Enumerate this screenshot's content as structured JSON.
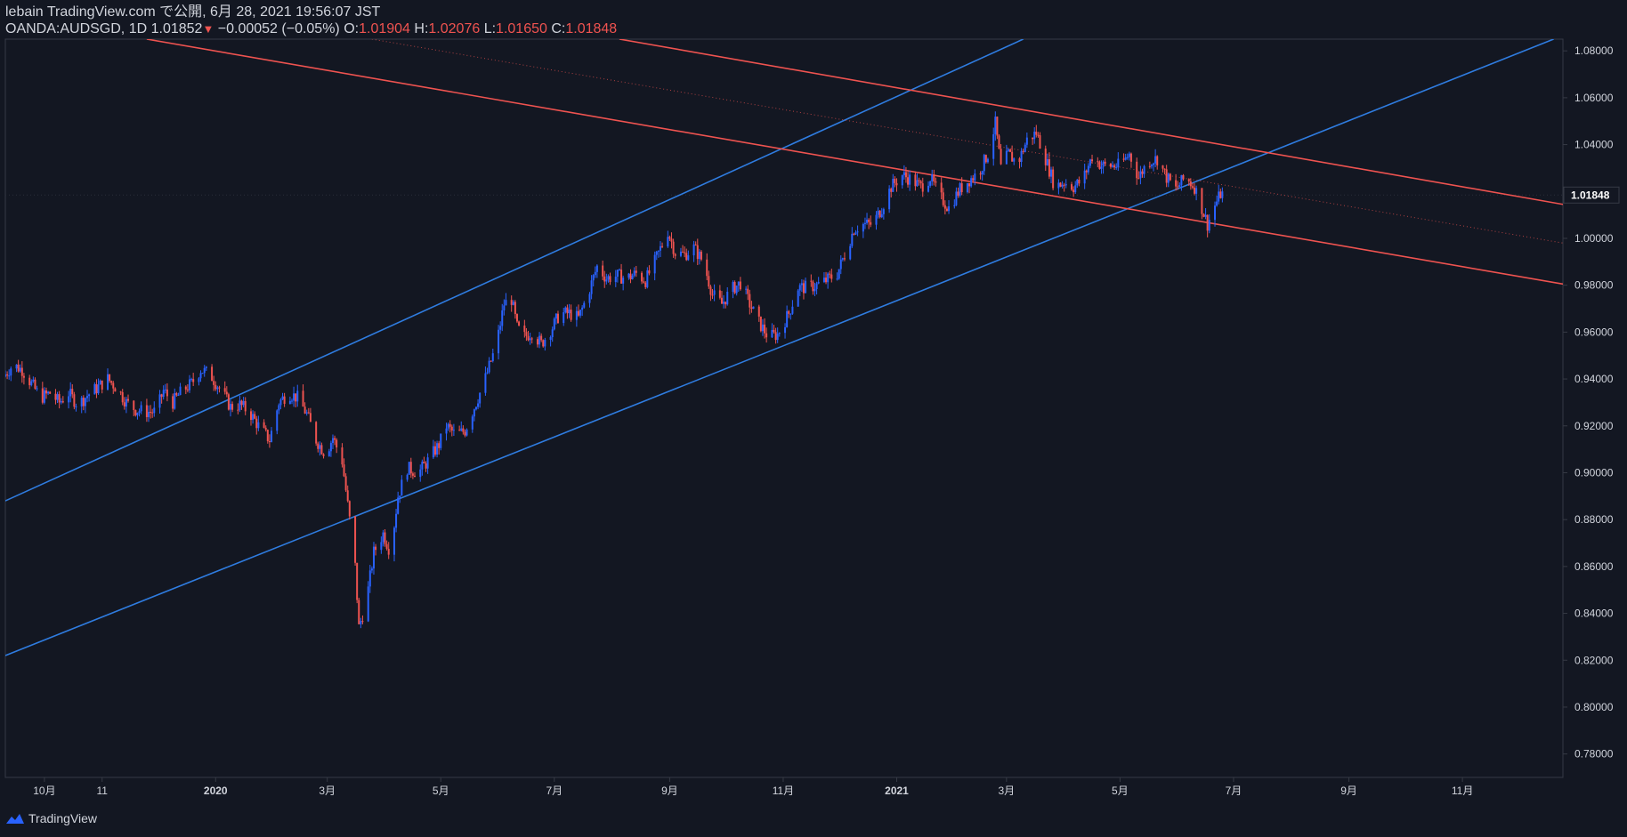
{
  "header": {
    "line1": "lebain TradingView.com で公開, 6月 28, 2021 19:56:07 JST",
    "symbol": "OANDA:AUDSGD, 1D",
    "last": "1.01852",
    "arrow": "▼",
    "change": "−0.00052 (−0.05%)",
    "o_label": "O:",
    "o_value": "1.01904",
    "h_label": "H:",
    "h_value": "1.02076",
    "l_label": "L:",
    "l_value": "1.01650",
    "c_label": "C:",
    "c_value": "1.01848"
  },
  "footer": {
    "brand": "TradingView",
    "logo": "tradingview-logo-icon"
  },
  "colors": {
    "background": "#131722",
    "up": "#2962ff",
    "down": "#ef5350",
    "channel_up": "#2f7ce0",
    "channel_down": "#ef5350",
    "text": "#d1d4dc",
    "grid_border": "#363a45"
  },
  "chart_data": {
    "type": "candlestick",
    "symbol": "OANDA:AUDSGD",
    "interval": "1D",
    "ylim": [
      0.77,
      1.085
    ],
    "y_ticks": [
      "1.08000",
      "1.06000",
      "1.04000",
      "1.02000",
      "1.00000",
      "0.98000",
      "0.96000",
      "0.94000",
      "0.92000",
      "0.90000",
      "0.88000",
      "0.86000",
      "0.84000",
      "0.82000",
      "0.80000",
      "0.78000"
    ],
    "y_tick_values": [
      1.08,
      1.06,
      1.04,
      1.02,
      1.0,
      0.98,
      0.96,
      0.94,
      0.92,
      0.9,
      0.88,
      0.86,
      0.84,
      0.82,
      0.8,
      0.78
    ],
    "price_label": "1.01848",
    "price_value": 1.01848,
    "x_range": [
      "2019-09-10",
      "2021-12-25"
    ],
    "x_ticks": [
      {
        "label": "10月",
        "date": "2019-10-01"
      },
      {
        "label": "11",
        "date": "2019-11-01"
      },
      {
        "label": "2020",
        "date": "2020-01-01"
      },
      {
        "label": "3月",
        "date": "2020-03-01"
      },
      {
        "label": "5月",
        "date": "2020-05-01"
      },
      {
        "label": "7月",
        "date": "2020-07-01"
      },
      {
        "label": "9月",
        "date": "2020-09-01"
      },
      {
        "label": "11月",
        "date": "2020-11-01"
      },
      {
        "label": "2021",
        "date": "2021-01-01"
      },
      {
        "label": "3月",
        "date": "2021-03-01"
      },
      {
        "label": "5月",
        "date": "2021-05-01"
      },
      {
        "label": "7月",
        "date": "2021-07-01"
      },
      {
        "label": "9月",
        "date": "2021-09-01"
      },
      {
        "label": "11月",
        "date": "2021-11-01"
      }
    ],
    "closes": [
      {
        "date": "2019-09-10",
        "close": 0.941
      },
      {
        "date": "2019-09-15",
        "close": 0.946
      },
      {
        "date": "2019-09-20",
        "close": 0.944
      },
      {
        "date": "2019-09-25",
        "close": 0.938
      },
      {
        "date": "2019-09-30",
        "close": 0.932
      },
      {
        "date": "2019-10-05",
        "close": 0.934
      },
      {
        "date": "2019-10-10",
        "close": 0.93
      },
      {
        "date": "2019-10-15",
        "close": 0.934
      },
      {
        "date": "2019-10-20",
        "close": 0.929
      },
      {
        "date": "2019-10-25",
        "close": 0.933
      },
      {
        "date": "2019-10-30",
        "close": 0.936
      },
      {
        "date": "2019-11-05",
        "close": 0.94
      },
      {
        "date": "2019-11-10",
        "close": 0.936
      },
      {
        "date": "2019-11-15",
        "close": 0.93
      },
      {
        "date": "2019-11-20",
        "close": 0.927
      },
      {
        "date": "2019-11-25",
        "close": 0.926
      },
      {
        "date": "2019-12-01",
        "close": 0.926
      },
      {
        "date": "2019-12-05",
        "close": 0.935
      },
      {
        "date": "2019-12-10",
        "close": 0.93
      },
      {
        "date": "2019-12-15",
        "close": 0.935
      },
      {
        "date": "2019-12-20",
        "close": 0.938
      },
      {
        "date": "2019-12-25",
        "close": 0.944
      },
      {
        "date": "2019-12-30",
        "close": 0.942
      },
      {
        "date": "2020-01-05",
        "close": 0.935
      },
      {
        "date": "2020-01-10",
        "close": 0.928
      },
      {
        "date": "2020-01-15",
        "close": 0.929
      },
      {
        "date": "2020-01-20",
        "close": 0.926
      },
      {
        "date": "2020-01-25",
        "close": 0.92
      },
      {
        "date": "2020-01-31",
        "close": 0.914
      },
      {
        "date": "2020-02-05",
        "close": 0.93
      },
      {
        "date": "2020-02-10",
        "close": 0.934
      },
      {
        "date": "2020-02-15",
        "close": 0.932
      },
      {
        "date": "2020-02-20",
        "close": 0.925
      },
      {
        "date": "2020-02-25",
        "close": 0.914
      },
      {
        "date": "2020-03-01",
        "close": 0.908
      },
      {
        "date": "2020-03-05",
        "close": 0.915
      },
      {
        "date": "2020-03-10",
        "close": 0.905
      },
      {
        "date": "2020-03-14",
        "close": 0.88
      },
      {
        "date": "2020-03-17",
        "close": 0.86
      },
      {
        "date": "2020-03-19",
        "close": 0.834
      },
      {
        "date": "2020-03-23",
        "close": 0.845
      },
      {
        "date": "2020-03-27",
        "close": 0.866
      },
      {
        "date": "2020-04-01",
        "close": 0.874
      },
      {
        "date": "2020-04-05",
        "close": 0.866
      },
      {
        "date": "2020-04-09",
        "close": 0.89
      },
      {
        "date": "2020-04-14",
        "close": 0.902
      },
      {
        "date": "2020-04-20",
        "close": 0.9
      },
      {
        "date": "2020-04-25",
        "close": 0.905
      },
      {
        "date": "2020-05-01",
        "close": 0.912
      },
      {
        "date": "2020-05-05",
        "close": 0.92
      },
      {
        "date": "2020-05-10",
        "close": 0.916
      },
      {
        "date": "2020-05-15",
        "close": 0.918
      },
      {
        "date": "2020-05-20",
        "close": 0.928
      },
      {
        "date": "2020-05-25",
        "close": 0.938
      },
      {
        "date": "2020-06-01",
        "close": 0.955
      },
      {
        "date": "2020-06-05",
        "close": 0.972
      },
      {
        "date": "2020-06-09",
        "close": 0.974
      },
      {
        "date": "2020-06-12",
        "close": 0.962
      },
      {
        "date": "2020-06-16",
        "close": 0.958
      },
      {
        "date": "2020-06-20",
        "close": 0.96
      },
      {
        "date": "2020-06-25",
        "close": 0.955
      },
      {
        "date": "2020-07-01",
        "close": 0.962
      },
      {
        "date": "2020-07-05",
        "close": 0.968
      },
      {
        "date": "2020-07-10",
        "close": 0.968
      },
      {
        "date": "2020-07-15",
        "close": 0.966
      },
      {
        "date": "2020-07-20",
        "close": 0.976
      },
      {
        "date": "2020-07-25",
        "close": 0.988
      },
      {
        "date": "2020-07-30",
        "close": 0.983
      },
      {
        "date": "2020-08-05",
        "close": 0.984
      },
      {
        "date": "2020-08-10",
        "close": 0.983
      },
      {
        "date": "2020-08-15",
        "close": 0.985
      },
      {
        "date": "2020-08-20",
        "close": 0.982
      },
      {
        "date": "2020-08-25",
        "close": 0.99
      },
      {
        "date": "2020-09-01",
        "close": 1.003
      },
      {
        "date": "2020-09-05",
        "close": 0.994
      },
      {
        "date": "2020-09-10",
        "close": 0.993
      },
      {
        "date": "2020-09-15",
        "close": 0.996
      },
      {
        "date": "2020-09-20",
        "close": 0.99
      },
      {
        "date": "2020-09-25",
        "close": 0.976
      },
      {
        "date": "2020-09-30",
        "close": 0.972
      },
      {
        "date": "2020-10-05",
        "close": 0.978
      },
      {
        "date": "2020-10-10",
        "close": 0.981
      },
      {
        "date": "2020-10-15",
        "close": 0.972
      },
      {
        "date": "2020-10-20",
        "close": 0.964
      },
      {
        "date": "2020-10-25",
        "close": 0.958
      },
      {
        "date": "2020-10-30",
        "close": 0.959
      },
      {
        "date": "2020-11-05",
        "close": 0.968
      },
      {
        "date": "2020-11-10",
        "close": 0.979
      },
      {
        "date": "2020-11-15",
        "close": 0.979
      },
      {
        "date": "2020-11-20",
        "close": 0.98
      },
      {
        "date": "2020-11-25",
        "close": 0.982
      },
      {
        "date": "2020-12-01",
        "close": 0.985
      },
      {
        "date": "2020-12-05",
        "close": 0.993
      },
      {
        "date": "2020-12-10",
        "close": 1.004
      },
      {
        "date": "2020-12-15",
        "close": 1.006
      },
      {
        "date": "2020-12-20",
        "close": 1.006
      },
      {
        "date": "2020-12-25",
        "close": 1.013
      },
      {
        "date": "2020-12-30",
        "close": 1.022
      },
      {
        "date": "2021-01-05",
        "close": 1.027
      },
      {
        "date": "2021-01-10",
        "close": 1.025
      },
      {
        "date": "2021-01-15",
        "close": 1.022
      },
      {
        "date": "2021-01-20",
        "close": 1.026
      },
      {
        "date": "2021-01-25",
        "close": 1.018
      },
      {
        "date": "2021-01-30",
        "close": 1.013
      },
      {
        "date": "2021-02-05",
        "close": 1.021
      },
      {
        "date": "2021-02-10",
        "close": 1.025
      },
      {
        "date": "2021-02-15",
        "close": 1.028
      },
      {
        "date": "2021-02-20",
        "close": 1.036
      },
      {
        "date": "2021-02-24",
        "close": 1.049
      },
      {
        "date": "2021-02-27",
        "close": 1.03
      },
      {
        "date": "2021-03-03",
        "close": 1.036
      },
      {
        "date": "2021-03-08",
        "close": 1.032
      },
      {
        "date": "2021-03-13",
        "close": 1.042
      },
      {
        "date": "2021-03-18",
        "close": 1.045
      },
      {
        "date": "2021-03-23",
        "close": 1.034
      },
      {
        "date": "2021-03-28",
        "close": 1.022
      },
      {
        "date": "2021-04-02",
        "close": 1.024
      },
      {
        "date": "2021-04-07",
        "close": 1.022
      },
      {
        "date": "2021-04-12",
        "close": 1.025
      },
      {
        "date": "2021-04-17",
        "close": 1.035
      },
      {
        "date": "2021-04-22",
        "close": 1.031
      },
      {
        "date": "2021-04-27",
        "close": 1.031
      },
      {
        "date": "2021-05-02",
        "close": 1.031
      },
      {
        "date": "2021-05-07",
        "close": 1.036
      },
      {
        "date": "2021-05-12",
        "close": 1.026
      },
      {
        "date": "2021-05-17",
        "close": 1.033
      },
      {
        "date": "2021-05-22",
        "close": 1.034
      },
      {
        "date": "2021-05-27",
        "close": 1.026
      },
      {
        "date": "2021-06-01",
        "close": 1.021
      },
      {
        "date": "2021-06-06",
        "close": 1.026
      },
      {
        "date": "2021-06-11",
        "close": 1.022
      },
      {
        "date": "2021-06-15",
        "close": 1.013
      },
      {
        "date": "2021-06-18",
        "close": 1.006
      },
      {
        "date": "2021-06-22",
        "close": 1.014
      },
      {
        "date": "2021-06-25",
        "close": 1.019
      },
      {
        "date": "2021-06-28",
        "close": 1.0185
      }
    ],
    "drawings": [
      {
        "kind": "channel-line",
        "color": "blue",
        "from": {
          "date": "2019-09-10",
          "price": 0.888
        },
        "to": {
          "date": "2021-03-10",
          "price": 1.085
        }
      },
      {
        "kind": "channel-line",
        "color": "blue",
        "from": {
          "date": "2019-09-10",
          "price": 0.822
        },
        "to": {
          "date": "2021-12-20",
          "price": 1.085
        }
      },
      {
        "kind": "channel-line",
        "color": "red",
        "from": {
          "date": "2019-11-25",
          "price": 1.085
        },
        "to": {
          "date": "2021-12-25",
          "price": 0.9805
        }
      },
      {
        "kind": "channel-line",
        "color": "red",
        "from": {
          "date": "2020-08-05",
          "price": 1.085
        },
        "to": {
          "date": "2021-12-25",
          "price": 1.0145
        }
      },
      {
        "kind": "midline-dotted",
        "color": "red",
        "from": {
          "date": "2020-03-25",
          "price": 1.085
        },
        "to": {
          "date": "2021-12-25",
          "price": 0.998
        }
      }
    ]
  }
}
